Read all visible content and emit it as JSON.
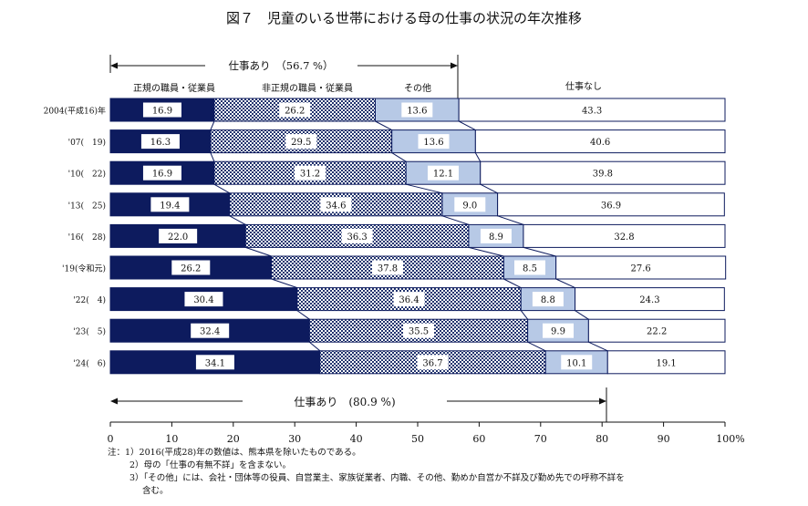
{
  "chart_data": {
    "type": "bar",
    "orientation": "horizontal",
    "stacked": true,
    "title": "図７　児童のいる世帯における母の仕事の状況の年次推移",
    "categories": [
      "2004(平成16)年",
      "'07(　19)",
      "'10(　22)",
      "'13(　25)",
      "'16(　28)",
      "'19(令和元)",
      "'22(　4)",
      "'23(　5)",
      "'24(　6)"
    ],
    "series": [
      {
        "name": "正規の職員・従業員",
        "color": "#0d1b5e",
        "values": [
          16.9,
          16.3,
          16.9,
          19.4,
          22.0,
          26.2,
          30.4,
          32.4,
          34.1
        ]
      },
      {
        "name": "非正規の職員・従業員",
        "color": "#3a4f8a",
        "values": [
          26.2,
          29.5,
          31.2,
          34.6,
          36.3,
          37.8,
          36.4,
          35.5,
          36.7
        ]
      },
      {
        "name": "その他",
        "color": "#b7c9e6",
        "values": [
          13.6,
          13.6,
          12.1,
          9.0,
          8.9,
          8.5,
          8.8,
          9.9,
          10.1
        ]
      },
      {
        "name": "仕事なし",
        "color": "#ffffff",
        "values": [
          43.3,
          40.6,
          39.8,
          36.9,
          32.8,
          27.6,
          24.3,
          22.2,
          19.1
        ]
      }
    ],
    "value_labels": [
      [
        "16.9",
        "26.2",
        "13.6",
        "43.3"
      ],
      [
        "16.3",
        "29.5",
        "13.6",
        "40.6"
      ],
      [
        "16.9",
        "31.2",
        "12.1",
        "39.8"
      ],
      [
        "19.4",
        "34.6",
        "9.0",
        "36.9"
      ],
      [
        "22.0",
        "36.3",
        "8.9",
        "32.8"
      ],
      [
        "26.2",
        "37.8",
        "8.5",
        "27.6"
      ],
      [
        "30.4",
        "36.4",
        "8.8",
        "24.3"
      ],
      [
        "32.4",
        "35.5",
        "9.9",
        "22.2"
      ],
      [
        "34.1",
        "36.7",
        "10.1",
        "19.1"
      ]
    ],
    "xlim": [
      0,
      100
    ],
    "xticks": [
      "0",
      "10",
      "20",
      "30",
      "40",
      "50",
      "60",
      "70",
      "80",
      "90",
      "100%"
    ],
    "connector_lines": true,
    "annotations": {
      "top": {
        "text": "仕事あり　（56.7 %）",
        "value": 56.7
      },
      "bottom": {
        "text": "仕事あり　(80.9 %)",
        "value": 80.9
      }
    },
    "notes": [
      "注：1）2016(平成28)年の数値は、熊本県を除いたものである。",
      "2）母の「仕事の有無不詳」を含まない。",
      "3）「その他」には、会社・団体等の役員、自営業主、家族従業者、内職、その他、勤めか自営か不詳及び勤め先での呼称不詳を",
      "含む。"
    ]
  }
}
